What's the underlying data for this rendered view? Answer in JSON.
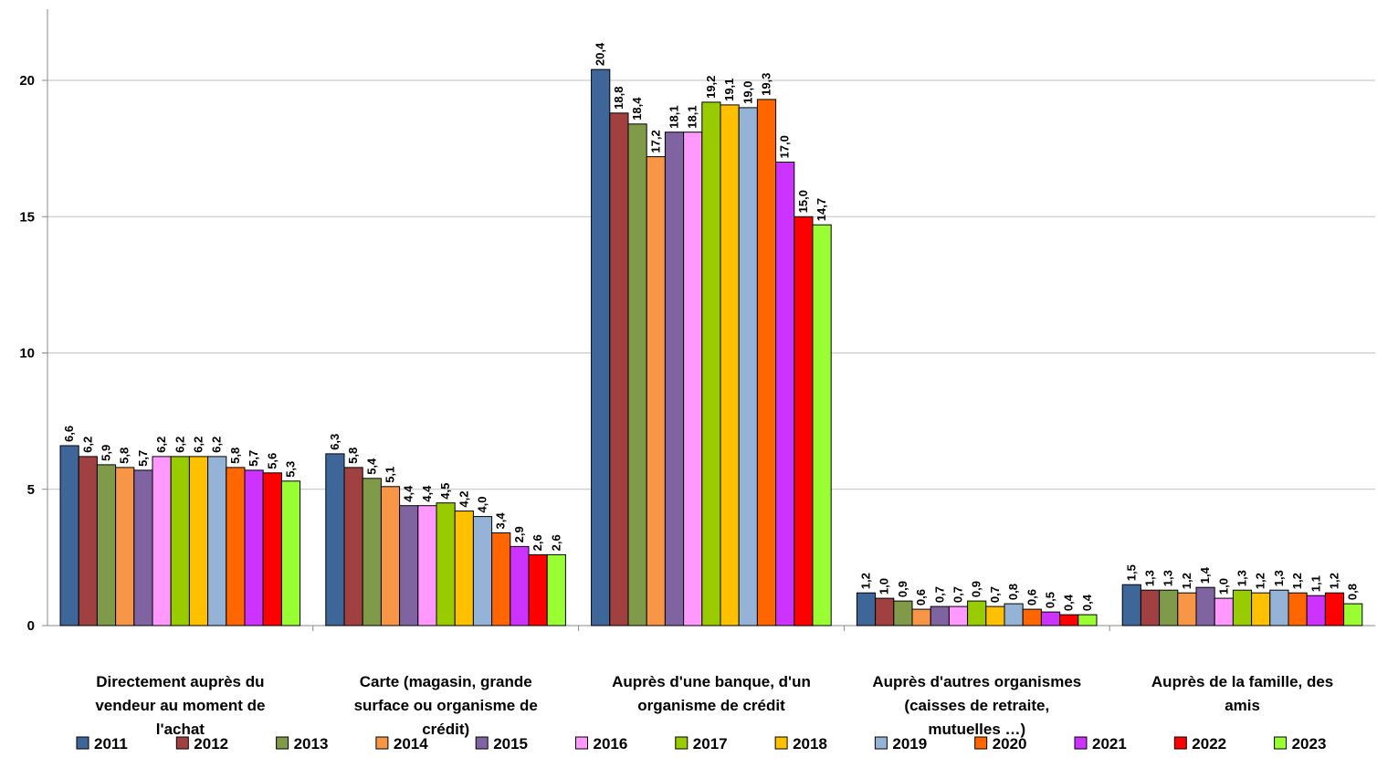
{
  "chart_data": {
    "type": "bar",
    "title": "",
    "xlabel": "",
    "ylabel": "",
    "ylim": [
      0,
      22
    ],
    "yticks": [
      0,
      5,
      10,
      15,
      20
    ],
    "grid": true,
    "legend_position": "bottom",
    "categories": [
      [
        "Directement auprès du",
        "vendeur au moment de",
        "l'achat"
      ],
      [
        "Carte (magasin, grande",
        "surface ou organisme de",
        "crédit)"
      ],
      [
        "Auprès d'une banque, d'un",
        "organisme de crédit"
      ],
      [
        "Auprès d'autres organismes",
        "(caisses de retraite,",
        "mutuelles …)"
      ],
      [
        "Auprès de la famille, des",
        "amis"
      ]
    ],
    "series": [
      {
        "name": "2011",
        "color": "#3F6699",
        "values": [
          6.6,
          6.3,
          20.4,
          1.2,
          1.5
        ]
      },
      {
        "name": "2012",
        "color": "#A04040",
        "values": [
          6.2,
          5.8,
          18.8,
          1.0,
          1.3
        ]
      },
      {
        "name": "2013",
        "color": "#7F9A48",
        "values": [
          5.9,
          5.4,
          18.4,
          0.9,
          1.3
        ]
      },
      {
        "name": "2014",
        "color": "#F79646",
        "values": [
          5.8,
          5.1,
          17.2,
          0.6,
          1.2
        ]
      },
      {
        "name": "2015",
        "color": "#8064A2",
        "values": [
          5.7,
          4.4,
          18.1,
          0.7,
          1.4
        ]
      },
      {
        "name": "2016",
        "color": "#FF99FF",
        "values": [
          6.2,
          4.4,
          18.1,
          0.7,
          1.0
        ]
      },
      {
        "name": "2017",
        "color": "#99CC00",
        "values": [
          6.2,
          4.5,
          19.2,
          0.9,
          1.3
        ]
      },
      {
        "name": "2018",
        "color": "#FFC000",
        "values": [
          6.2,
          4.2,
          19.1,
          0.7,
          1.2
        ]
      },
      {
        "name": "2019",
        "color": "#95B3D7",
        "values": [
          6.2,
          4.0,
          19.0,
          0.8,
          1.3
        ]
      },
      {
        "name": "2020",
        "color": "#FF6600",
        "values": [
          5.8,
          3.4,
          19.3,
          0.6,
          1.2
        ]
      },
      {
        "name": "2021",
        "color": "#CC33FF",
        "values": [
          5.7,
          2.9,
          17.0,
          0.5,
          1.1
        ]
      },
      {
        "name": "2022",
        "color": "#FF0000",
        "values": [
          5.6,
          2.6,
          15.0,
          0.4,
          1.2
        ]
      },
      {
        "name": "2023",
        "color": "#99FF33",
        "values": [
          5.3,
          2.6,
          14.7,
          0.4,
          0.8
        ]
      }
    ]
  }
}
